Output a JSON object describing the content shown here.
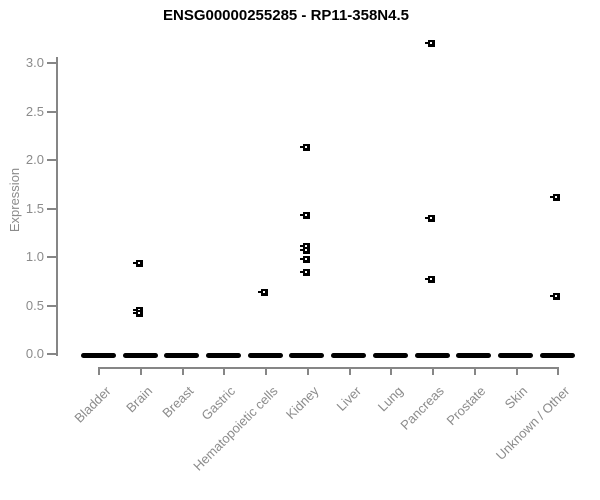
{
  "title": "ENSG00000255285 - RP11-358N4.5",
  "colors": {
    "background": "#ffffff",
    "title_text": "#000000",
    "axis_line": "#868686",
    "axis_text": "#8b8b8b",
    "point": "#000000"
  },
  "chart_data": {
    "type": "scatter",
    "subtype": "strip-plot-by-category",
    "title": "ENSG00000255285 - RP11-358N4.5",
    "xlabel": "",
    "ylabel": "Expression",
    "ylim": [
      0,
      3.3
    ],
    "yticks": [
      0,
      0.5,
      1,
      1.5,
      2,
      2.5,
      3
    ],
    "grid": "off",
    "legend": "none",
    "marker": "small-black-open-square",
    "categories": [
      "Bladder",
      "Brain",
      "Breast",
      "Gastric",
      "Hematopoietic cells",
      "Kidney",
      "Liver",
      "Lung",
      "Pancreas",
      "Prostate",
      "Skin",
      "Unknown / Other"
    ],
    "zero_cluster_note": "every category shows a dense horizontal cluster of overlapping points at expression 0, drawn as a thick black dash on the baseline",
    "series": [
      {
        "category": "Bladder",
        "zero_cluster": true,
        "values": []
      },
      {
        "category": "Brain",
        "zero_cluster": true,
        "values": [
          0.93,
          0.45,
          0.42
        ]
      },
      {
        "category": "Breast",
        "zero_cluster": true,
        "values": []
      },
      {
        "category": "Gastric",
        "zero_cluster": true,
        "values": []
      },
      {
        "category": "Hematopoietic cells",
        "zero_cluster": true,
        "values": [
          0.63
        ]
      },
      {
        "category": "Kidney",
        "zero_cluster": true,
        "values": [
          2.13,
          1.43,
          1.11,
          1.07,
          0.97,
          0.84
        ]
      },
      {
        "category": "Liver",
        "zero_cluster": true,
        "values": []
      },
      {
        "category": "Lung",
        "zero_cluster": true,
        "values": []
      },
      {
        "category": "Pancreas",
        "zero_cluster": true,
        "values": [
          3.2,
          1.4,
          0.77
        ]
      },
      {
        "category": "Prostate",
        "zero_cluster": true,
        "values": []
      },
      {
        "category": "Skin",
        "zero_cluster": true,
        "values": []
      },
      {
        "category": "Unknown / Other",
        "zero_cluster": true,
        "values": [
          1.61,
          0.59
        ]
      }
    ]
  }
}
